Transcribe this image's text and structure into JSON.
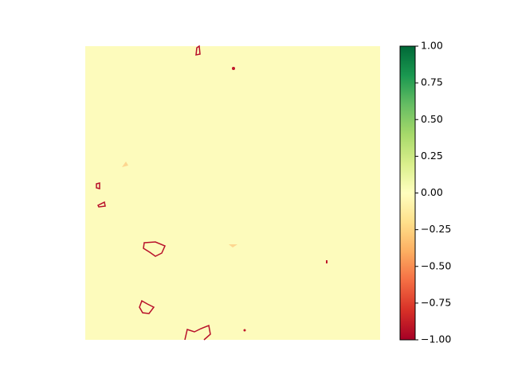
{
  "chart_data": {
    "type": "heatmap",
    "colormap": "RdYlGn",
    "clim": [
      -1,
      1
    ],
    "cticks": [
      {
        "value": -1,
        "label": "−1.00"
      },
      {
        "value": -0.75,
        "label": "−0.75"
      },
      {
        "value": -0.5,
        "label": "−0.50"
      },
      {
        "value": -0.25,
        "label": "−0.25"
      },
      {
        "value": 0,
        "label": "0.00"
      },
      {
        "value": 0.25,
        "label": "0.25"
      },
      {
        "value": 0.5,
        "label": "0.50"
      },
      {
        "value": 0.75,
        "label": "0.75"
      },
      {
        "value": 1,
        "label": "1.00"
      }
    ]
  }
}
